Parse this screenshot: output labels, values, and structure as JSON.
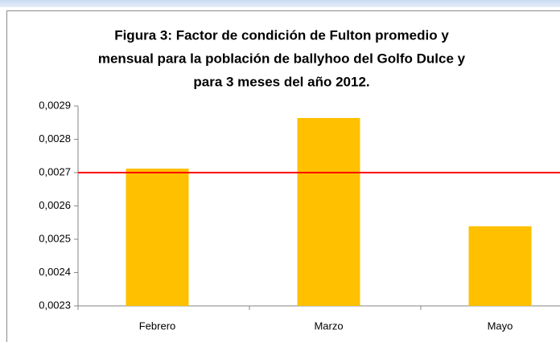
{
  "chart_data": {
    "type": "bar",
    "title": [
      "Figura 3: Factor de condición de Fulton promedio y",
      "mensual para la población de ballyhoo del Golfo Dulce y",
      "para 3 meses del año 2012."
    ],
    "categories": [
      "Febrero",
      "Marzo",
      "Mayo"
    ],
    "values": [
      0.002712,
      0.002864,
      0.002539
    ],
    "color": "#ffc000",
    "ylim": [
      0.0023,
      0.0029
    ],
    "yticks": [
      {
        "value": 0.0023,
        "label": "0,0023"
      },
      {
        "value": 0.0024,
        "label": "0,0024"
      },
      {
        "value": 0.0025,
        "label": "0,0025"
      },
      {
        "value": 0.0026,
        "label": "0,0026"
      },
      {
        "value": 0.0027,
        "label": "0,0027"
      },
      {
        "value": 0.0028,
        "label": "0,0028"
      },
      {
        "value": 0.0029,
        "label": "0,0029"
      }
    ],
    "grid": false,
    "reference_line": {
      "value": 0.0027,
      "color": "#ff0000"
    }
  }
}
